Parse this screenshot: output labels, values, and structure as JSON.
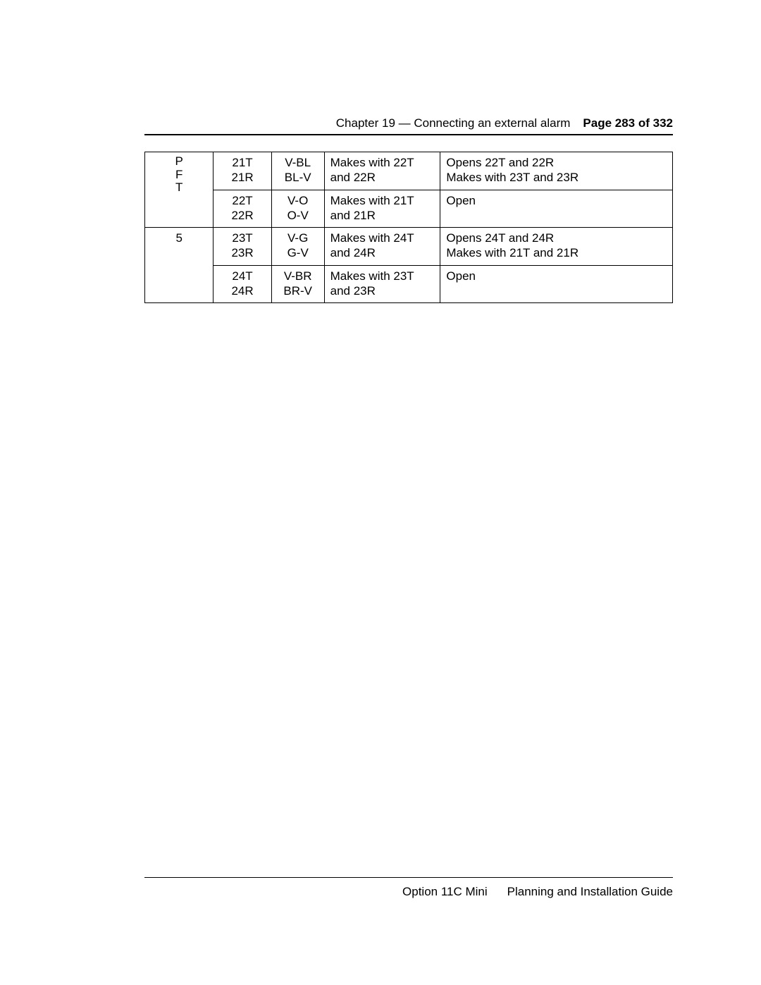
{
  "header": {
    "chapter": "Chapter 19 — Connecting an external alarm",
    "page": "Page 283 of 332"
  },
  "table": {
    "type": "table",
    "lead_column": {
      "pft": [
        "P",
        "F",
        "T"
      ],
      "group": "5"
    },
    "columns": [
      "pin",
      "color",
      "make",
      "action"
    ],
    "rows": [
      {
        "pin": [
          "21T",
          "21R"
        ],
        "color": [
          "V-BL",
          "BL-V"
        ],
        "make": [
          "Makes with 22T",
          "and 22R"
        ],
        "action": [
          "Opens 22T and 22R",
          "Makes with 23T and 23R"
        ]
      },
      {
        "pin": [
          "22T",
          "22R"
        ],
        "color": [
          "V-O",
          "O-V"
        ],
        "make": [
          "Makes with 21T",
          "and 21R"
        ],
        "action": [
          "Open"
        ]
      },
      {
        "pin": [
          "23T",
          "23R"
        ],
        "color": [
          "V-G",
          "G-V"
        ],
        "make": [
          "Makes with 24T",
          "and 24R"
        ],
        "action": [
          "Opens 24T and 24R",
          "Makes with 21T and 21R"
        ]
      },
      {
        "pin": [
          "24T",
          "24R"
        ],
        "color": [
          "V-BR",
          "BR-V"
        ],
        "make": [
          "Makes with 23T",
          "and 23R"
        ],
        "action": [
          "Open"
        ]
      }
    ],
    "border_color": "#000000",
    "font_size_pt": 13,
    "background_color": "#ffffff"
  },
  "footer": {
    "product": "Option 11C Mini",
    "doc": "Planning and Installation Guide"
  }
}
